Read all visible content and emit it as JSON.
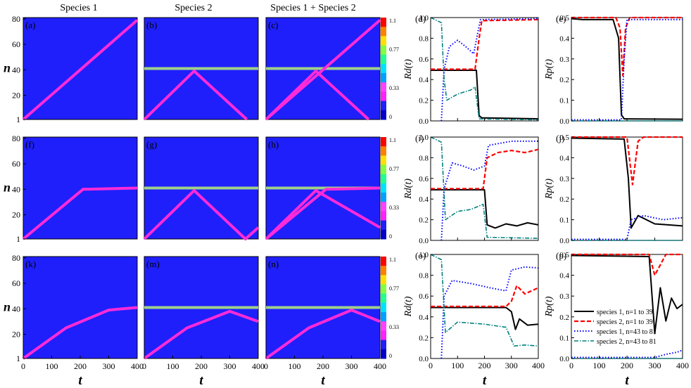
{
  "figure": {
    "column_titles": [
      "Species 1",
      "Species 2",
      "Species 1 + Species 2"
    ],
    "heatmap_xlabel": "t",
    "heatmap_ylabel": "n",
    "heatmap_xticks": [
      "0",
      "100",
      "200",
      "300",
      "400"
    ],
    "heatmap_yticks": [
      "1",
      "20",
      "40",
      "60",
      "80"
    ],
    "colorbar_ticks": [
      "0",
      "0.33",
      "0.77",
      "1.1"
    ],
    "line_xticks": [
      "0",
      "100",
      "200",
      "300",
      "400"
    ],
    "rd_label": "Rd(t)",
    "rp_label": "Rp(t)",
    "rd_yticks": [
      "0.0",
      "0.2",
      "0.4",
      "0.6",
      "0.8",
      "1.0"
    ],
    "rp_yticks": [
      "0.0",
      "0.1",
      "0.2",
      "0.3",
      "0.4",
      "0.5"
    ],
    "legend": [
      "species 1, n=1 to 39",
      "species 2, n=1 to 39",
      "species 1, n=43 to 81",
      "species 2, n=43 to 81"
    ],
    "colors": {
      "background": "#1f1ffb",
      "trail": "#ff2bd8",
      "band": "#9fd08a",
      "s1_low": "#000000",
      "s2_low": "#ff0000",
      "s1_high": "#0000ff",
      "s2_high": "#008080"
    }
  },
  "chart_data": [
    {
      "panel": "(a)",
      "type": "heatmap",
      "xlim": [
        0,
        400
      ],
      "ylim": [
        1,
        81
      ],
      "zlim": [
        0,
        1.1
      ],
      "trails": [
        [
          [
            0,
            1
          ],
          [
            400,
            79
          ]
        ]
      ],
      "band_n": null
    },
    {
      "panel": "(b)",
      "type": "heatmap",
      "xlim": [
        0,
        400
      ],
      "ylim": [
        1,
        81
      ],
      "trails": [
        [
          [
            0,
            1
          ],
          [
            175,
            39
          ],
          [
            360,
            1
          ]
        ]
      ],
      "band_n": 41
    },
    {
      "panel": "(c)",
      "type": "heatmap",
      "xlim": [
        0,
        400
      ],
      "ylim": [
        1,
        81
      ],
      "trails": [
        [
          [
            0,
            1
          ],
          [
            400,
            79
          ]
        ],
        [
          [
            0,
            1
          ],
          [
            175,
            39
          ],
          [
            360,
            1
          ]
        ]
      ],
      "band_n": 41
    },
    {
      "panel": "(d)",
      "type": "line",
      "ylabel": "Rd(t)",
      "xlim": [
        0,
        400
      ],
      "ylim": [
        0,
        1.0
      ],
      "series": [
        {
          "values": [
            [
              0,
              0.49
            ],
            [
              170,
              0.49
            ],
            [
              180,
              0.05
            ],
            [
              190,
              0.03
            ],
            [
              400,
              0.02
            ]
          ]
        },
        {
          "values": [
            [
              0,
              0.5
            ],
            [
              165,
              0.5
            ],
            [
              180,
              0.8
            ],
            [
              190,
              0.97
            ],
            [
              400,
              0.98
            ]
          ]
        },
        {
          "values": [
            [
              40,
              0
            ],
            [
              50,
              0.5
            ],
            [
              70,
              0.72
            ],
            [
              100,
              0.78
            ],
            [
              130,
              0.72
            ],
            [
              160,
              0.65
            ],
            [
              175,
              0.85
            ],
            [
              185,
              0.98
            ],
            [
              400,
              0.99
            ]
          ]
        },
        {
          "values": [
            [
              0,
              1.0
            ],
            [
              40,
              0.95
            ],
            [
              50,
              0.4
            ],
            [
              60,
              0.2
            ],
            [
              100,
              0.26
            ],
            [
              150,
              0.3
            ],
            [
              165,
              0.33
            ],
            [
              180,
              0.02
            ],
            [
              400,
              0.01
            ]
          ]
        }
      ]
    },
    {
      "panel": "(e)",
      "type": "line",
      "ylabel": "Rp(t)",
      "xlim": [
        0,
        400
      ],
      "ylim": [
        0,
        0.5
      ],
      "series": [
        {
          "values": [
            [
              0,
              0.495
            ],
            [
              40,
              0.49
            ],
            [
              150,
              0.49
            ],
            [
              170,
              0.4
            ],
            [
              180,
              0.03
            ],
            [
              190,
              0.01
            ],
            [
              400,
              0.008
            ]
          ]
        },
        {
          "values": [
            [
              0,
              0.5
            ],
            [
              160,
              0.5
            ],
            [
              175,
              0.45
            ],
            [
              185,
              0.22
            ],
            [
              195,
              0.45
            ],
            [
              210,
              0.5
            ],
            [
              400,
              0.5
            ]
          ]
        },
        {
          "values": [
            [
              0,
              0.005
            ],
            [
              180,
              0.005
            ],
            [
              190,
              0.3
            ],
            [
              200,
              0.49
            ],
            [
              400,
              0.49
            ]
          ]
        },
        {
          "values": [
            [
              0,
              0.0
            ],
            [
              400,
              0.0
            ]
          ]
        }
      ]
    },
    {
      "panel": "(f)",
      "type": "heatmap",
      "xlim": [
        0,
        400
      ],
      "ylim": [
        1,
        81
      ],
      "trails": [
        [
          [
            0,
            1
          ],
          [
            210,
            40
          ],
          [
            400,
            41
          ]
        ]
      ],
      "band_n": null
    },
    {
      "panel": "(g)",
      "type": "heatmap",
      "xlim": [
        0,
        400
      ],
      "ylim": [
        1,
        81
      ],
      "trails": [
        [
          [
            0,
            1
          ],
          [
            175,
            39
          ],
          [
            355,
            1
          ],
          [
            400,
            10
          ]
        ]
      ],
      "band_n": 41
    },
    {
      "panel": "(h)",
      "type": "heatmap",
      "xlim": [
        0,
        400
      ],
      "ylim": [
        1,
        81
      ],
      "trails": [
        [
          [
            0,
            1
          ],
          [
            210,
            40
          ],
          [
            400,
            41
          ]
        ],
        [
          [
            0,
            1
          ],
          [
            175,
            39
          ],
          [
            400,
            10
          ]
        ]
      ],
      "band_n": 41
    },
    {
      "panel": "(i)",
      "type": "line",
      "ylabel": "Rd(t)",
      "xlim": [
        0,
        400
      ],
      "ylim": [
        0,
        1.0
      ],
      "series": [
        {
          "values": [
            [
              0,
              0.49
            ],
            [
              200,
              0.49
            ],
            [
              210,
              0.15
            ],
            [
              240,
              0.12
            ],
            [
              280,
              0.16
            ],
            [
              320,
              0.14
            ],
            [
              360,
              0.17
            ],
            [
              400,
              0.15
            ]
          ]
        },
        {
          "values": [
            [
              0,
              0.5
            ],
            [
              195,
              0.5
            ],
            [
              210,
              0.8
            ],
            [
              250,
              0.85
            ],
            [
              300,
              0.87
            ],
            [
              350,
              0.85
            ],
            [
              400,
              0.88
            ]
          ]
        },
        {
          "values": [
            [
              40,
              0
            ],
            [
              50,
              0.5
            ],
            [
              80,
              0.75
            ],
            [
              120,
              0.72
            ],
            [
              160,
              0.68
            ],
            [
              200,
              0.72
            ],
            [
              215,
              0.92
            ],
            [
              300,
              0.96
            ],
            [
              400,
              0.96
            ]
          ]
        },
        {
          "values": [
            [
              0,
              1.0
            ],
            [
              40,
              0.95
            ],
            [
              55,
              0.2
            ],
            [
              100,
              0.28
            ],
            [
              150,
              0.3
            ],
            [
              195,
              0.35
            ],
            [
              210,
              0.03
            ],
            [
              400,
              0.02
            ]
          ]
        }
      ]
    },
    {
      "panel": "(j)",
      "type": "line",
      "ylabel": "Rp(t)",
      "xlim": [
        0,
        400
      ],
      "ylim": [
        0,
        0.5
      ],
      "series": [
        {
          "values": [
            [
              0,
              0.495
            ],
            [
              190,
              0.49
            ],
            [
              205,
              0.3
            ],
            [
              215,
              0.06
            ],
            [
              240,
              0.12
            ],
            [
              300,
              0.08
            ],
            [
              400,
              0.07
            ]
          ]
        },
        {
          "values": [
            [
              0,
              0.5
            ],
            [
              200,
              0.5
            ],
            [
              220,
              0.27
            ],
            [
              240,
              0.48
            ],
            [
              260,
              0.5
            ],
            [
              400,
              0.5
            ]
          ]
        },
        {
          "values": [
            [
              0,
              0.005
            ],
            [
              200,
              0.005
            ],
            [
              215,
              0.1
            ],
            [
              260,
              0.12
            ],
            [
              330,
              0.1
            ],
            [
              400,
              0.11
            ]
          ]
        },
        {
          "values": [
            [
              0,
              0.0
            ],
            [
              400,
              0.0
            ]
          ]
        }
      ]
    },
    {
      "panel": "(k)",
      "type": "heatmap",
      "xlim": [
        0,
        400
      ],
      "ylim": [
        1,
        81
      ],
      "trails": [
        [
          [
            0,
            1
          ],
          [
            150,
            25
          ],
          [
            300,
            39
          ],
          [
            350,
            40
          ],
          [
            400,
            41
          ]
        ]
      ],
      "band_n": null
    },
    {
      "panel": "(m)",
      "type": "heatmap",
      "xlim": [
        0,
        400
      ],
      "ylim": [
        1,
        81
      ],
      "trails": [
        [
          [
            0,
            1
          ],
          [
            150,
            25
          ],
          [
            300,
            38
          ],
          [
            400,
            30
          ]
        ]
      ],
      "band_n": 41
    },
    {
      "panel": "(n)",
      "type": "heatmap",
      "xlim": [
        0,
        400
      ],
      "ylim": [
        1,
        81
      ],
      "trails": [
        [
          [
            0,
            1
          ],
          [
            150,
            25
          ],
          [
            300,
            39
          ],
          [
            400,
            30
          ]
        ]
      ],
      "band_n": 41
    },
    {
      "panel": "(o)",
      "type": "line",
      "ylabel": "Rd(t)",
      "xlim": [
        0,
        400
      ],
      "ylim": [
        0,
        1.0
      ],
      "series": [
        {
          "values": [
            [
              0,
              0.49
            ],
            [
              280,
              0.49
            ],
            [
              300,
              0.45
            ],
            [
              315,
              0.28
            ],
            [
              330,
              0.38
            ],
            [
              360,
              0.32
            ],
            [
              400,
              0.33
            ]
          ]
        },
        {
          "values": [
            [
              0,
              0.5
            ],
            [
              280,
              0.5
            ],
            [
              300,
              0.55
            ],
            [
              320,
              0.7
            ],
            [
              350,
              0.62
            ],
            [
              400,
              0.68
            ]
          ]
        },
        {
          "values": [
            [
              40,
              0
            ],
            [
              50,
              0.6
            ],
            [
              80,
              0.75
            ],
            [
              150,
              0.72
            ],
            [
              220,
              0.68
            ],
            [
              280,
              0.65
            ],
            [
              300,
              0.85
            ],
            [
              350,
              0.88
            ],
            [
              400,
              0.87
            ]
          ]
        },
        {
          "values": [
            [
              0,
              1.0
            ],
            [
              40,
              0.95
            ],
            [
              55,
              0.25
            ],
            [
              100,
              0.35
            ],
            [
              200,
              0.33
            ],
            [
              280,
              0.3
            ],
            [
              310,
              0.12
            ],
            [
              350,
              0.13
            ],
            [
              400,
              0.12
            ]
          ]
        }
      ]
    },
    {
      "panel": "(p)",
      "type": "line",
      "ylabel": "Rp(t)",
      "xlim": [
        0,
        400
      ],
      "ylim": [
        0,
        0.5
      ],
      "series": [
        {
          "values": [
            [
              0,
              0.495
            ],
            [
              280,
              0.49
            ],
            [
              300,
              0.12
            ],
            [
              320,
              0.34
            ],
            [
              340,
              0.18
            ],
            [
              360,
              0.29
            ],
            [
              380,
              0.24
            ],
            [
              400,
              0.26
            ]
          ]
        },
        {
          "values": [
            [
              0,
              0.5
            ],
            [
              280,
              0.5
            ],
            [
              300,
              0.4
            ],
            [
              320,
              0.45
            ],
            [
              340,
              0.5
            ],
            [
              400,
              0.5
            ]
          ]
        },
        {
          "values": [
            [
              0,
              0.005
            ],
            [
              300,
              0.005
            ],
            [
              340,
              0.02
            ],
            [
              380,
              0.03
            ],
            [
              400,
              0.04
            ]
          ]
        },
        {
          "values": [
            [
              0,
              0.0
            ],
            [
              400,
              0.0
            ]
          ]
        }
      ]
    }
  ]
}
